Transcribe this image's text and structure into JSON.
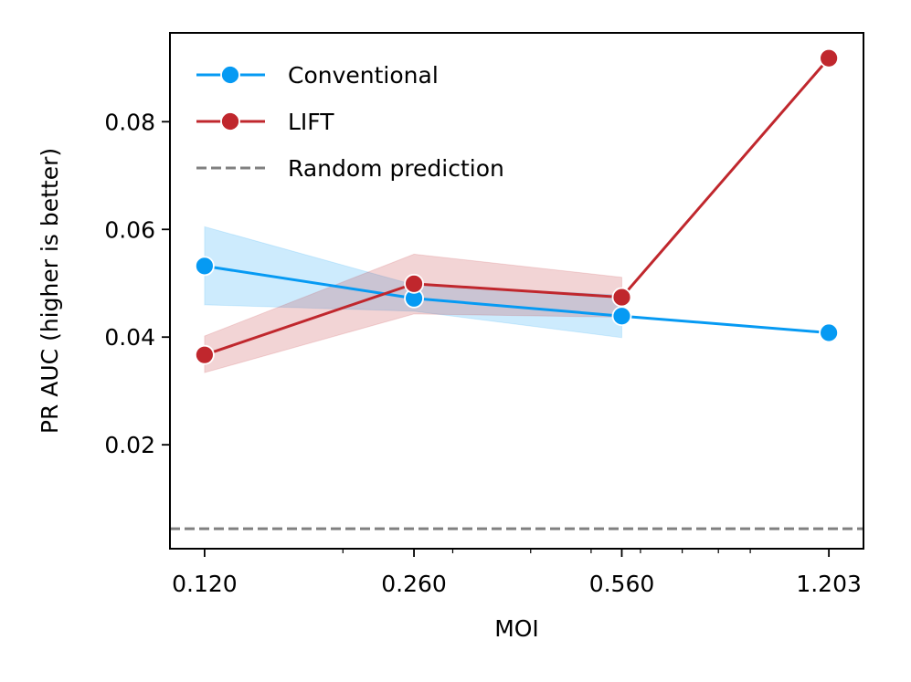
{
  "chart_data": {
    "type": "line",
    "title": "",
    "xlabel": "MOI",
    "ylabel": "PR AUC (higher is better)",
    "x_scale": "log",
    "x": [
      0.12,
      0.26,
      0.56,
      1.203
    ],
    "x_tick_labels": [
      "0.120",
      "0.260",
      "0.560",
      "1.203"
    ],
    "xlim": [
      0.1056,
      1.367
    ],
    "ylim": [
      0.0007,
      0.0965
    ],
    "y_ticks": [
      0.02,
      0.04,
      0.06,
      0.08
    ],
    "y_tick_labels": [
      "0.02",
      "0.04",
      "0.06",
      "0.08"
    ],
    "grid": false,
    "legend_position": "top-left",
    "series": [
      {
        "name": "Conventional",
        "color": "#069af3",
        "values": [
          0.0532,
          0.0472,
          0.0439,
          0.0408
        ],
        "ci_lower": [
          0.046,
          0.0448,
          0.0399,
          null
        ],
        "ci_upper": [
          0.0605,
          0.0497,
          0.0478,
          null
        ]
      },
      {
        "name": "LIFT",
        "color": "#c0272d",
        "values": [
          0.0367,
          0.0499,
          0.0474,
          0.0918
        ],
        "ci_lower": [
          0.0334,
          0.0443,
          0.0437,
          null
        ],
        "ci_upper": [
          0.0402,
          0.0554,
          0.0511,
          null
        ]
      }
    ],
    "reference_line": {
      "name": "Random prediction",
      "color": "#808080",
      "value": 0.0044
    }
  }
}
